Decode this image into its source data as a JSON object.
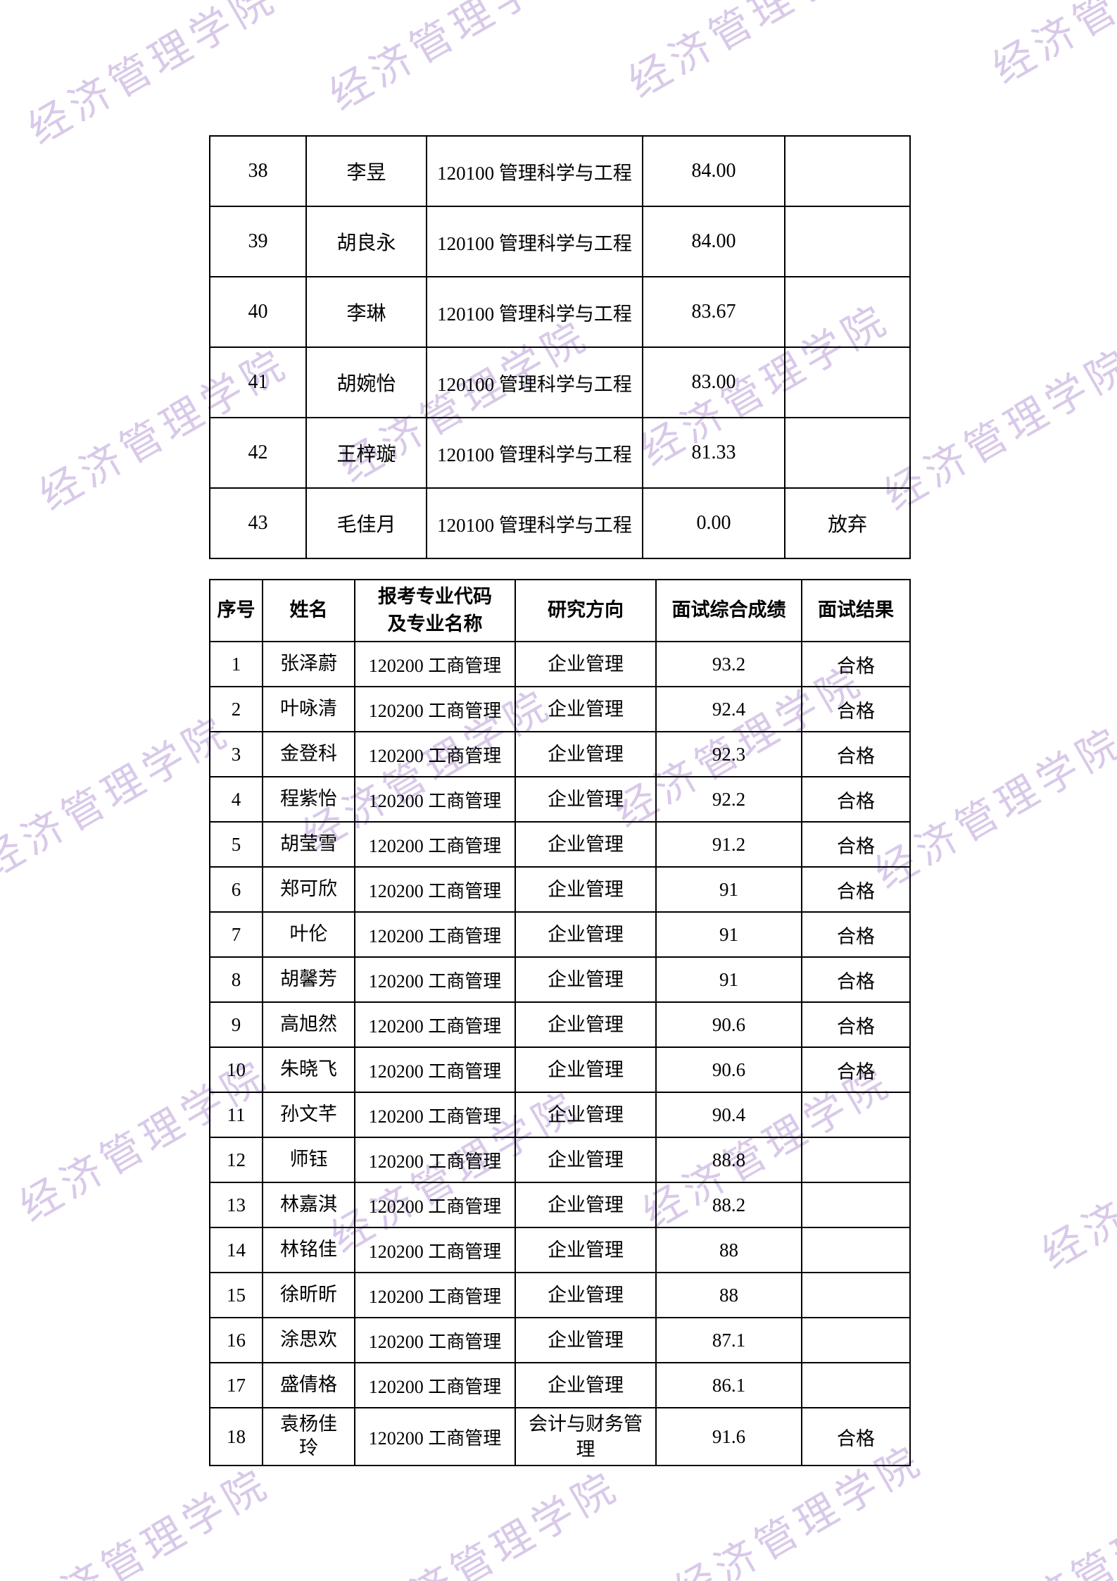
{
  "watermark": {
    "text": "经济管理学院",
    "color": "#d9c9e9"
  },
  "table1": {
    "rows": [
      {
        "num": "38",
        "name": "李昱",
        "major": "120100 管理科学与工程",
        "score": "84.00",
        "result": ""
      },
      {
        "num": "39",
        "name": "胡良永",
        "major": "120100 管理科学与工程",
        "score": "84.00",
        "result": ""
      },
      {
        "num": "40",
        "name": "李琳",
        "major": "120100 管理科学与工程",
        "score": "83.67",
        "result": ""
      },
      {
        "num": "41",
        "name": "胡婉怡",
        "major": "120100 管理科学与工程",
        "score": "83.00",
        "result": ""
      },
      {
        "num": "42",
        "name": "王梓璇",
        "major": "120100 管理科学与工程",
        "score": "81.33",
        "result": ""
      },
      {
        "num": "43",
        "name": "毛佳月",
        "major": "120100 管理科学与工程",
        "score": "0.00",
        "result": "放弃"
      }
    ]
  },
  "table2": {
    "headers": {
      "num": "序号",
      "name": "姓名",
      "major": "报考专业代码\n及专业名称",
      "direction": "研究方向",
      "score": "面试综合成绩",
      "result": "面试结果"
    },
    "rows": [
      {
        "num": "1",
        "name": "张泽蔚",
        "major": "120200 工商管理",
        "direction": "企业管理",
        "score": "93.2",
        "result": "合格"
      },
      {
        "num": "2",
        "name": "叶咏清",
        "major": "120200 工商管理",
        "direction": "企业管理",
        "score": "92.4",
        "result": "合格"
      },
      {
        "num": "3",
        "name": "金登科",
        "major": "120200 工商管理",
        "direction": "企业管理",
        "score": "92.3",
        "result": "合格"
      },
      {
        "num": "4",
        "name": "程紫怡",
        "major": "120200 工商管理",
        "direction": "企业管理",
        "score": "92.2",
        "result": "合格"
      },
      {
        "num": "5",
        "name": "胡莹雪",
        "major": "120200 工商管理",
        "direction": "企业管理",
        "score": "91.2",
        "result": "合格"
      },
      {
        "num": "6",
        "name": "郑可欣",
        "major": "120200 工商管理",
        "direction": "企业管理",
        "score": "91",
        "result": "合格"
      },
      {
        "num": "7",
        "name": "叶伦",
        "major": "120200 工商管理",
        "direction": "企业管理",
        "score": "91",
        "result": "合格"
      },
      {
        "num": "8",
        "name": "胡馨芳",
        "major": "120200 工商管理",
        "direction": "企业管理",
        "score": "91",
        "result": "合格"
      },
      {
        "num": "9",
        "name": "高旭然",
        "major": "120200 工商管理",
        "direction": "企业管理",
        "score": "90.6",
        "result": "合格"
      },
      {
        "num": "10",
        "name": "朱晓飞",
        "major": "120200 工商管理",
        "direction": "企业管理",
        "score": "90.6",
        "result": "合格"
      },
      {
        "num": "11",
        "name": "孙文芊",
        "major": "120200 工商管理",
        "direction": "企业管理",
        "score": "90.4",
        "result": ""
      },
      {
        "num": "12",
        "name": "师钰",
        "major": "120200 工商管理",
        "direction": "企业管理",
        "score": "88.8",
        "result": ""
      },
      {
        "num": "13",
        "name": "林嘉淇",
        "major": "120200 工商管理",
        "direction": "企业管理",
        "score": "88.2",
        "result": ""
      },
      {
        "num": "14",
        "name": "林铭佳",
        "major": "120200 工商管理",
        "direction": "企业管理",
        "score": "88",
        "result": ""
      },
      {
        "num": "15",
        "name": "徐昕昕",
        "major": "120200 工商管理",
        "direction": "企业管理",
        "score": "88",
        "result": ""
      },
      {
        "num": "16",
        "name": "涂思欢",
        "major": "120200 工商管理",
        "direction": "企业管理",
        "score": "87.1",
        "result": ""
      },
      {
        "num": "17",
        "name": "盛倩格",
        "major": "120200 工商管理",
        "direction": "企业管理",
        "score": "86.1",
        "result": ""
      },
      {
        "num": "18",
        "name": "袁杨佳玲",
        "major": "120200 工商管理",
        "direction": "会计与财务管理",
        "score": "91.6",
        "result": "合格"
      }
    ]
  }
}
